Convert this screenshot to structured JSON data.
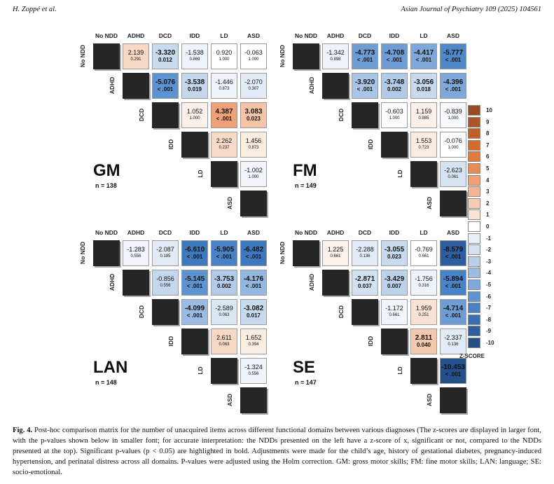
{
  "header": {
    "left": "H. Zoppé et al.",
    "right": "Asian Journal of Psychiatry 109 (2025) 104561"
  },
  "labels": [
    "No NDD",
    "ADHD",
    "DCD",
    "IDD",
    "LD",
    "ASD"
  ],
  "panels": [
    {
      "title": "GM",
      "n": "n = 138",
      "cells": [
        {
          "r": 0,
          "c": 1,
          "z": "2.139",
          "p": "0.291",
          "sig": false,
          "color": "#f7d8c4"
        },
        {
          "r": 0,
          "c": 2,
          "z": "-3.320",
          "p": "0.012",
          "sig": true,
          "color": "#c9dbee"
        },
        {
          "r": 0,
          "c": 3,
          "z": "-1.538",
          "p": "0.869",
          "sig": false,
          "color": "#eef3fa"
        },
        {
          "r": 0,
          "c": 4,
          "z": "0.920",
          "p": "1.000",
          "sig": false,
          "color": "#ffffff"
        },
        {
          "r": 0,
          "c": 5,
          "z": "-0.063",
          "p": "1.000",
          "sig": false,
          "color": "#ffffff"
        },
        {
          "r": 1,
          "c": 2,
          "z": "-5.076",
          "p": "< .001",
          "sig": true,
          "color": "#5d93d0"
        },
        {
          "r": 1,
          "c": 3,
          "z": "-3.538",
          "p": "0.019",
          "sig": true,
          "color": "#c4d7ed"
        },
        {
          "r": 1,
          "c": 4,
          "z": "-1.446",
          "p": "0.873",
          "sig": false,
          "color": "#eef3fa"
        },
        {
          "r": 1,
          "c": 5,
          "z": "-2.070",
          "p": "0.307",
          "sig": false,
          "color": "#e3ecf6"
        },
        {
          "r": 2,
          "c": 3,
          "z": "1.052",
          "p": "1.000",
          "sig": false,
          "color": "#fcf1ea"
        },
        {
          "r": 2,
          "c": 4,
          "z": "4.387",
          "p": "< .001",
          "sig": true,
          "color": "#efa27a"
        },
        {
          "r": 2,
          "c": 5,
          "z": "3.083",
          "p": "0.023",
          "sig": true,
          "color": "#f5c4a8"
        },
        {
          "r": 3,
          "c": 4,
          "z": "2.262",
          "p": "0.237",
          "sig": false,
          "color": "#f7dac8"
        },
        {
          "r": 3,
          "c": 5,
          "z": "1.456",
          "p": "0.873",
          "sig": false,
          "color": "#fbece2"
        },
        {
          "r": 4,
          "c": 5,
          "z": "-1.002",
          "p": "1.000",
          "sig": false,
          "color": "#f1f5fb"
        }
      ]
    },
    {
      "title": "FM",
      "n": "n = 149",
      "cells": [
        {
          "r": 0,
          "c": 1,
          "z": "-1.342",
          "p": "0.898",
          "sig": false,
          "color": "#eef3fa"
        },
        {
          "r": 0,
          "c": 2,
          "z": "-4.773",
          "p": "< .001",
          "sig": true,
          "color": "#6d9dd4"
        },
        {
          "r": 0,
          "c": 3,
          "z": "-4.708",
          "p": "< .001",
          "sig": true,
          "color": "#6d9dd4"
        },
        {
          "r": 0,
          "c": 4,
          "z": "-4.417",
          "p": "< .001",
          "sig": true,
          "color": "#7ea8da"
        },
        {
          "r": 0,
          "c": 5,
          "z": "-5.777",
          "p": "< .001",
          "sig": true,
          "color": "#4f87c8"
        },
        {
          "r": 1,
          "c": 2,
          "z": "-3.920",
          "p": "< .001",
          "sig": true,
          "color": "#a9c5e6"
        },
        {
          "r": 1,
          "c": 3,
          "z": "-3.748",
          "p": "0.002",
          "sig": true,
          "color": "#b3cbe8"
        },
        {
          "r": 1,
          "c": 4,
          "z": "-3.056",
          "p": "0.018",
          "sig": true,
          "color": "#c7daee"
        },
        {
          "r": 1,
          "c": 5,
          "z": "-4.396",
          "p": "< .001",
          "sig": true,
          "color": "#7ea8da"
        },
        {
          "r": 2,
          "c": 3,
          "z": "-0.603",
          "p": "1.000",
          "sig": false,
          "color": "#ffffff"
        },
        {
          "r": 2,
          "c": 4,
          "z": "1.159",
          "p": "0.985",
          "sig": false,
          "color": "#fcf1ea"
        },
        {
          "r": 2,
          "c": 5,
          "z": "-0.839",
          "p": "1.000",
          "sig": false,
          "color": "#f7f9fc"
        },
        {
          "r": 3,
          "c": 4,
          "z": "1.553",
          "p": "0.723",
          "sig": false,
          "color": "#fbece2"
        },
        {
          "r": 3,
          "c": 5,
          "z": "-0.076",
          "p": "1.000",
          "sig": false,
          "color": "#ffffff"
        },
        {
          "r": 4,
          "c": 5,
          "z": "-2.623",
          "p": "0.061",
          "sig": false,
          "color": "#d6e3f2"
        }
      ]
    },
    {
      "title": "LAN",
      "n": "n = 148",
      "cells": [
        {
          "r": 0,
          "c": 1,
          "z": "-1.283",
          "p": "0.556",
          "sig": false,
          "color": "#f1f5fb"
        },
        {
          "r": 0,
          "c": 2,
          "z": "-2.087",
          "p": "0.185",
          "sig": false,
          "color": "#e3ecf6"
        },
        {
          "r": 0,
          "c": 3,
          "z": "-6.610",
          "p": "< .001",
          "sig": true,
          "color": "#3f79bd"
        },
        {
          "r": 0,
          "c": 4,
          "z": "-5.905",
          "p": "< .001",
          "sig": true,
          "color": "#4a83c5"
        },
        {
          "r": 0,
          "c": 5,
          "z": "-6.482",
          "p": "< .001",
          "sig": true,
          "color": "#3f79bd"
        },
        {
          "r": 1,
          "c": 2,
          "z": "-0.856",
          "p": "0.556",
          "sig": false,
          "color": "#c4d7ed"
        },
        {
          "r": 1,
          "c": 3,
          "z": "-5.145",
          "p": "< .001",
          "sig": true,
          "color": "#5d93d0"
        },
        {
          "r": 1,
          "c": 4,
          "z": "-3.753",
          "p": "0.002",
          "sig": true,
          "color": "#b3cbe8"
        },
        {
          "r": 1,
          "c": 5,
          "z": "-4.176",
          "p": "< .001",
          "sig": true,
          "color": "#94b7e0"
        },
        {
          "r": 2,
          "c": 3,
          "z": "-4.099",
          "p": "< .001",
          "sig": true,
          "color": "#9bbbe2"
        },
        {
          "r": 2,
          "c": 4,
          "z": "-2.589",
          "p": "0.063",
          "sig": false,
          "color": "#dae6f3"
        },
        {
          "r": 2,
          "c": 5,
          "z": "-3.082",
          "p": "0.017",
          "sig": true,
          "color": "#c7daee"
        },
        {
          "r": 3,
          "c": 4,
          "z": "2.611",
          "p": "0.063",
          "sig": false,
          "color": "#f7d8c4"
        },
        {
          "r": 3,
          "c": 5,
          "z": "1.652",
          "p": "0.394",
          "sig": false,
          "color": "#fbece2"
        },
        {
          "r": 4,
          "c": 5,
          "z": "-1.324",
          "p": "0.556",
          "sig": false,
          "color": "#eef3fa"
        }
      ]
    },
    {
      "title": "SE",
      "n": "n = 147",
      "cells": [
        {
          "r": 0,
          "c": 1,
          "z": "1.225",
          "p": "0.661",
          "sig": false,
          "color": "#fcf1ea"
        },
        {
          "r": 0,
          "c": 2,
          "z": "-2.288",
          "p": "0.136",
          "sig": false,
          "color": "#e3ecf6"
        },
        {
          "r": 0,
          "c": 3,
          "z": "-3.055",
          "p": "0.023",
          "sig": true,
          "color": "#c7daee"
        },
        {
          "r": 0,
          "c": 4,
          "z": "-0.769",
          "p": "0.661",
          "sig": false,
          "color": "#ffffff"
        },
        {
          "r": 0,
          "c": 5,
          "z": "-8.579",
          "p": "< .001",
          "sig": true,
          "color": "#2f5e9e"
        },
        {
          "r": 1,
          "c": 2,
          "z": "-2.871",
          "p": "0.037",
          "sig": true,
          "color": "#d2e1f1"
        },
        {
          "r": 1,
          "c": 3,
          "z": "-3.429",
          "p": "0.007",
          "sig": true,
          "color": "#bcd2eb"
        },
        {
          "r": 1,
          "c": 4,
          "z": "-1.756",
          "p": "0.316",
          "sig": false,
          "color": "#eef3fa"
        },
        {
          "r": 1,
          "c": 5,
          "z": "-5.894",
          "p": "< .001",
          "sig": true,
          "color": "#4a83c5"
        },
        {
          "r": 2,
          "c": 3,
          "z": "-1.172",
          "p": "0.661",
          "sig": false,
          "color": "#f1f5fb"
        },
        {
          "r": 2,
          "c": 4,
          "z": "1.959",
          "p": "0.251",
          "sig": false,
          "color": "#f9e2d4"
        },
        {
          "r": 2,
          "c": 5,
          "z": "-4.714",
          "p": "< .001",
          "sig": true,
          "color": "#6d9dd4"
        },
        {
          "r": 3,
          "c": 4,
          "z": "2.811",
          "p": "0.040",
          "sig": true,
          "color": "#f5c9ae"
        },
        {
          "r": 3,
          "c": 5,
          "z": "-2.337",
          "p": "0.136",
          "sig": false,
          "color": "#e3ecf6"
        },
        {
          "r": 4,
          "c": 5,
          "z": "-10.453",
          "p": "< .001",
          "sig": true,
          "color": "#23508a"
        }
      ]
    }
  ],
  "legend": {
    "title": "Z-SCORE",
    "items": [
      {
        "tick": "10",
        "color": "#9a4a20"
      },
      {
        "tick": "9",
        "color": "#ad5424"
      },
      {
        "tick": "8",
        "color": "#c15f28"
      },
      {
        "tick": "7",
        "color": "#d46b2e"
      },
      {
        "tick": "6",
        "color": "#e07a3e"
      },
      {
        "tick": "5",
        "color": "#ea8b55"
      },
      {
        "tick": "4",
        "color": "#f09e72"
      },
      {
        "tick": "3",
        "color": "#f5b592"
      },
      {
        "tick": "2",
        "color": "#f8cbb2"
      },
      {
        "tick": "1",
        "color": "#fbe3d4"
      },
      {
        "tick": "0",
        "color": "#ffffff"
      },
      {
        "tick": "-1",
        "color": "#e8eff8"
      },
      {
        "tick": "-2",
        "color": "#d3e1f1"
      },
      {
        "tick": "-3",
        "color": "#bad0ea"
      },
      {
        "tick": "-4",
        "color": "#9dbce2"
      },
      {
        "tick": "-5",
        "color": "#7ea8da"
      },
      {
        "tick": "-6",
        "color": "#5f94d0"
      },
      {
        "tick": "-7",
        "color": "#4a81c4"
      },
      {
        "tick": "-8",
        "color": "#3b6fb0"
      },
      {
        "tick": "-9",
        "color": "#2f5e9c"
      },
      {
        "tick": "-10",
        "color": "#244e86"
      }
    ]
  },
  "caption": {
    "label": "Fig. 4.",
    "text": "Post-hoc comparison matrix for the number of unacquired items across different functional domains between various diagnoses (The z-scores are displayed in larger font, with the p-values shown below in smaller font; for accurate interpretation: the NDDs presented on the left have a z-score of x, significant or not, compared to the NDDs presented at the top). Significant p-values (p < 0.05) are highlighted in bold. Adjustments were made for the child’s age, history of gestational diabetes, pregnancy-induced hypertension, and perinatal distress across all domains. P-values were adjusted using the Holm correction. GM: gross motor skills; FM: fine motor skills; LAN: language; SE: socio-emotional."
  }
}
